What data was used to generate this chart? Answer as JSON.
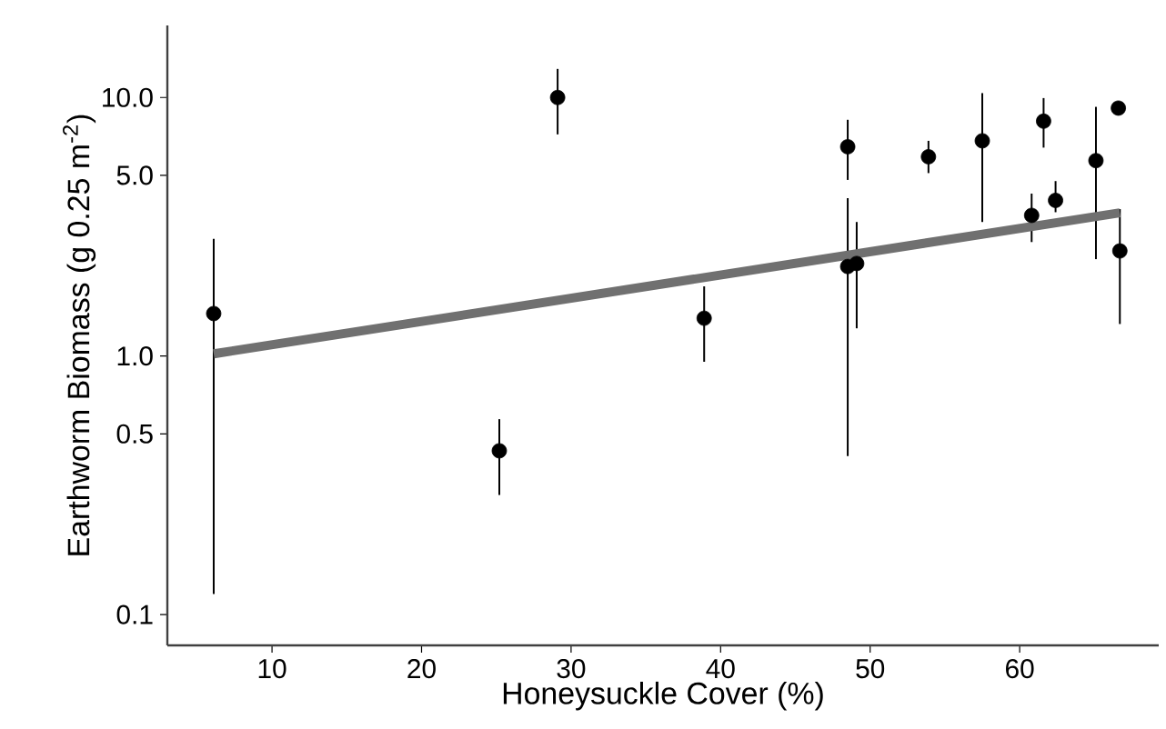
{
  "chart_data": {
    "type": "scatter",
    "xlabel": "Honeysuckle Cover (%)",
    "ylabel": "Earthworm Biomass (g 0.25 m$^{-2}$)",
    "log": "y",
    "grid": false,
    "marker": "circle",
    "xlim": [
      3,
      69.3
    ],
    "xticks": [
      10,
      20,
      30,
      40,
      50,
      60
    ],
    "ylim": [
      0.076,
      19
    ],
    "yticks": [
      0.1,
      0.5,
      {
        "value": 1,
        "label": "1.0"
      },
      {
        "value": 5,
        "label": "5.0"
      },
      {
        "value": 10,
        "label": "10.0"
      }
    ],
    "series": [
      {
        "color": "#000000",
        "x": [
          6.1,
          25.2,
          29.1,
          38.9,
          48.5,
          48.5,
          49.1,
          53.9,
          57.5,
          60.8,
          61.6,
          62.4,
          65.1,
          66.6,
          66.7
        ],
        "values": [
          1.46,
          0.43,
          10.0,
          1.4,
          6.45,
          2.22,
          2.28,
          5.9,
          6.8,
          3.5,
          8.1,
          4.0,
          5.7,
          9.1,
          2.55
        ],
        "errors": [
          [
            0.12,
            2.84
          ],
          [
            0.29,
            0.57
          ],
          [
            7.2,
            12.9
          ],
          [
            0.95,
            1.86
          ],
          [
            4.8,
            8.2
          ],
          [
            0.41,
            4.08
          ],
          [
            1.28,
            3.3
          ],
          [
            5.1,
            6.8
          ],
          [
            3.3,
            10.4
          ],
          [
            2.76,
            4.25
          ],
          [
            6.4,
            9.95
          ],
          [
            3.6,
            4.75
          ],
          [
            2.37,
            9.2
          ],
          [
            8.6,
            9.6
          ],
          [
            1.33,
            3.7
          ]
        ]
      },
      {
        "type": "line",
        "color": "#707070",
        "marker": "none",
        "x": [
          6.1,
          66.7
        ],
        "values": [
          1.02,
          3.58
        ]
      }
    ]
  }
}
